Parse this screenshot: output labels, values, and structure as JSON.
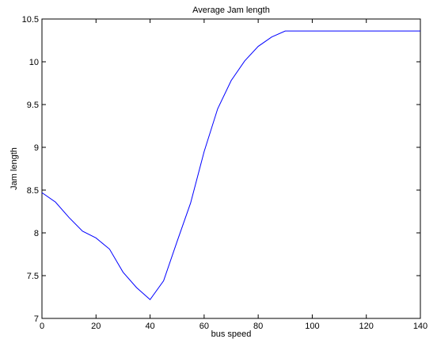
{
  "chart_data": {
    "type": "line",
    "title": "Average Jam length",
    "xlabel": "bus speed",
    "ylabel": "Jam length",
    "xlim": [
      0,
      140
    ],
    "ylim": [
      7,
      10.5
    ],
    "xticks": [
      0,
      20,
      40,
      60,
      80,
      100,
      120,
      140
    ],
    "yticks": [
      7,
      7.5,
      8,
      8.5,
      9,
      9.5,
      10,
      10.5
    ],
    "xtick_labels": [
      "0",
      "20",
      "40",
      "60",
      "80",
      "100",
      "120",
      "140"
    ],
    "ytick_labels": [
      "7",
      "7.5",
      "8",
      "8.5",
      "9",
      "9.5",
      "10",
      "10.5"
    ],
    "grid": false,
    "series": [
      {
        "color": "#0000ff",
        "x": [
          0,
          5,
          10,
          15,
          20,
          25,
          30,
          35,
          40,
          45,
          50,
          55,
          60,
          65,
          70,
          75,
          80,
          85,
          90,
          95,
          100,
          105,
          110,
          115,
          120,
          125,
          130,
          135,
          140
        ],
        "y": [
          8.47,
          8.36,
          8.18,
          8.02,
          7.94,
          7.81,
          7.54,
          7.36,
          7.22,
          7.44,
          7.9,
          8.35,
          8.95,
          9.45,
          9.78,
          10.01,
          10.18,
          10.29,
          10.36,
          10.36,
          10.36,
          10.36,
          10.36,
          10.36,
          10.36,
          10.36,
          10.36,
          10.36,
          10.36
        ]
      }
    ]
  }
}
